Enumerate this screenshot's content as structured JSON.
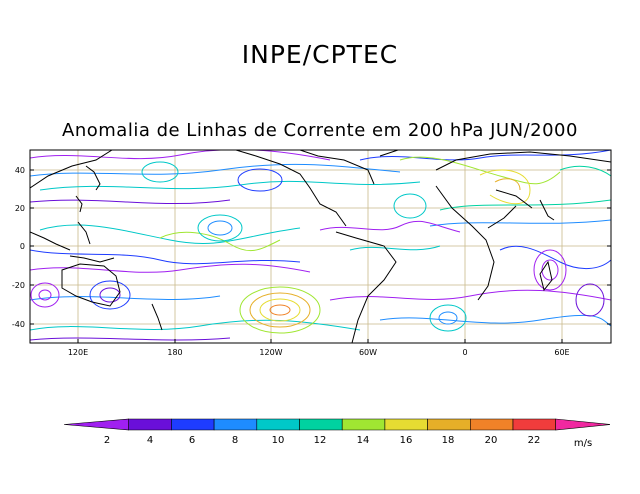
{
  "header": {
    "organization": "INPE/CPTEC",
    "title": "Anomalia de Linhas de Corrente em 200 hPa JUN/2000"
  },
  "map": {
    "lon_ticks": [
      "120E",
      "180",
      "120W",
      "60W",
      "0",
      "60E"
    ],
    "lat_ticks": [
      "40",
      "20",
      "0",
      "-20",
      "-40"
    ],
    "grid_color": "#c8b98a",
    "land_color": "#000000"
  },
  "colorbar": {
    "labels": [
      "2",
      "4",
      "6",
      "8",
      "10",
      "12",
      "14",
      "16",
      "18",
      "20",
      "22"
    ],
    "unit": "m/s",
    "colors": [
      "#a020f0",
      "#6a0fd9",
      "#1e3cff",
      "#1e8cff",
      "#00c8c8",
      "#00d2a0",
      "#a0e632",
      "#e6dc32",
      "#e6af28",
      "#f08228",
      "#f03c3c",
      "#f028a0"
    ]
  }
}
